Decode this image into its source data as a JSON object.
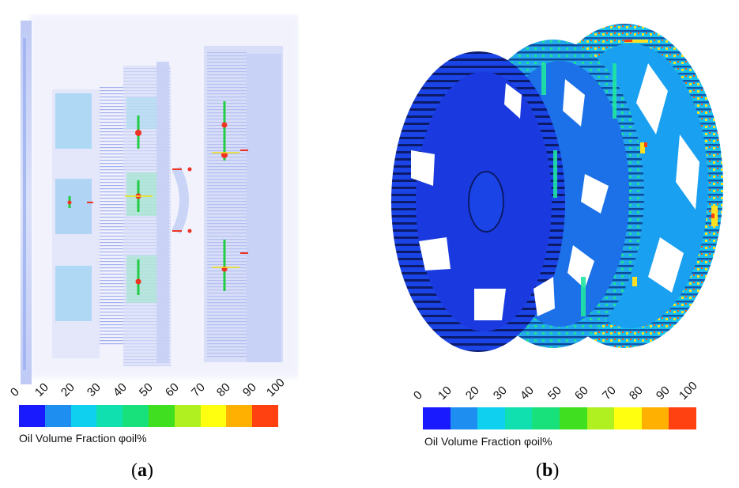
{
  "colorbar": {
    "ticks": [
      "0",
      "10",
      "20",
      "30",
      "40",
      "50",
      "60",
      "70",
      "80",
      "90",
      "100"
    ],
    "colors": [
      "#1a1aff",
      "#1e8ff0",
      "#10d0f0",
      "#10e0b0",
      "#18e07a",
      "#40e020",
      "#b0f020",
      "#ffff10",
      "#ffb000",
      "#ff4010"
    ],
    "title": "Oil Volume Fraction φoil%"
  },
  "panels": [
    {
      "open": "(",
      "letter": "a",
      "close": ")"
    },
    {
      "open": "(",
      "letter": "b",
      "close": ")"
    }
  ]
}
